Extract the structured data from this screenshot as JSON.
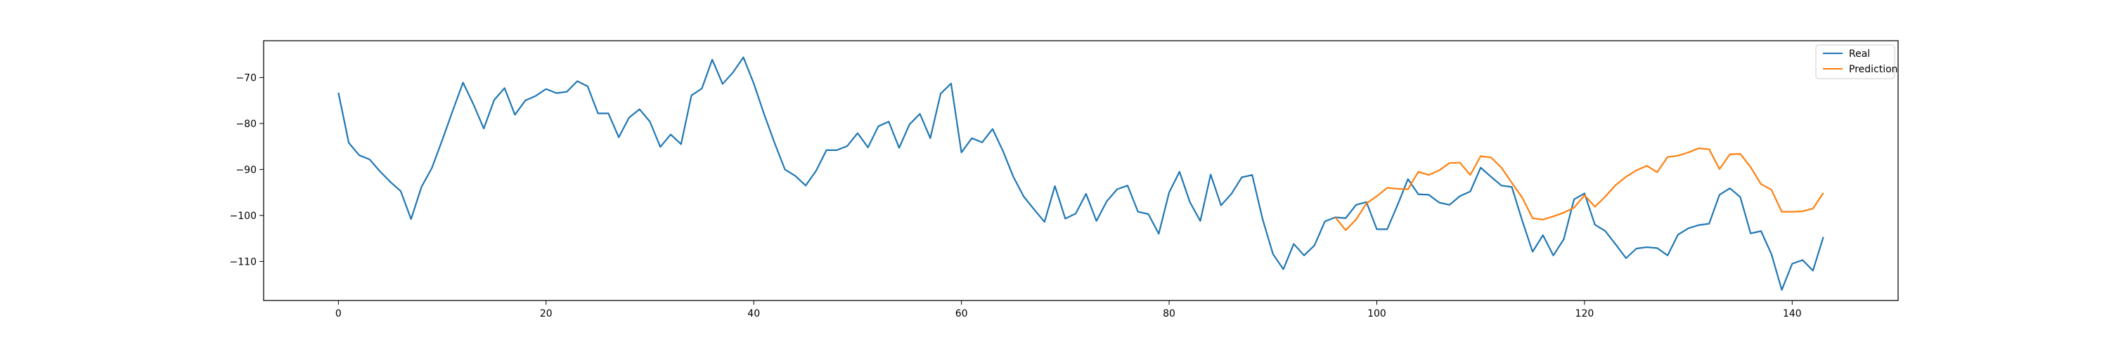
{
  "chart_data": {
    "type": "line",
    "title": "",
    "xlabel": "",
    "ylabel": "",
    "xlim": [
      -7.2,
      150.2
    ],
    "ylim": [
      -118.5,
      -62.0
    ],
    "xticks": [
      0,
      20,
      40,
      60,
      80,
      100,
      120,
      140
    ],
    "yticks": [
      -70,
      -80,
      -90,
      -100,
      -110
    ],
    "xtick_labels": [
      "0",
      "20",
      "40",
      "60",
      "80",
      "100",
      "120",
      "140"
    ],
    "ytick_labels": [
      "−70",
      "−80",
      "−90",
      "−100",
      "−110"
    ],
    "grid": false,
    "legend": {
      "position": "top-right",
      "entries": [
        "Real",
        "Prediction"
      ]
    },
    "series": [
      {
        "name": "Real",
        "color": "#1f77b4",
        "x": [
          0,
          1,
          2,
          3,
          4,
          5,
          6,
          7,
          8,
          9,
          10,
          11,
          12,
          13,
          14,
          15,
          16,
          17,
          18,
          19,
          20,
          21,
          22,
          23,
          24,
          25,
          26,
          27,
          28,
          29,
          30,
          31,
          32,
          33,
          34,
          35,
          36,
          37,
          38,
          39,
          40,
          41,
          42,
          43,
          44,
          45,
          46,
          47,
          48,
          49,
          50,
          51,
          52,
          53,
          54,
          55,
          56,
          57,
          58,
          59,
          60,
          61,
          62,
          63,
          64,
          65,
          66,
          67,
          68,
          69,
          70,
          71,
          72,
          73,
          74,
          75,
          76,
          77,
          78,
          79,
          80,
          81,
          82,
          83,
          84,
          85,
          86,
          87,
          88,
          89,
          90,
          91,
          92,
          93,
          94,
          95,
          96,
          97,
          98,
          99,
          100,
          101,
          102,
          103,
          104,
          105,
          106,
          107,
          108,
          109,
          110,
          111,
          112,
          113,
          114,
          115,
          116,
          117,
          118,
          119,
          120,
          121,
          122,
          123,
          124,
          125,
          126,
          127,
          128,
          129,
          130,
          131,
          132,
          133,
          134,
          135,
          136,
          137,
          138,
          139,
          140,
          141,
          142,
          143
        ],
        "values": [
          -73.3,
          -84.2,
          -86.9,
          -87.8,
          -90.4,
          -92.7,
          -94.7,
          -100.8,
          -93.8,
          -89.7,
          -83.6,
          -77.3,
          -71.1,
          -75.8,
          -81.1,
          -74.9,
          -72.3,
          -78.1,
          -75.0,
          -74.0,
          -72.5,
          -73.4,
          -73.1,
          -70.8,
          -71.9,
          -77.8,
          -77.8,
          -83.0,
          -78.7,
          -76.9,
          -79.6,
          -85.1,
          -82.4,
          -84.5,
          -73.9,
          -72.4,
          -66.1,
          -71.4,
          -68.9,
          -65.6,
          -71.3,
          -78.0,
          -84.2,
          -90.0,
          -91.4,
          -93.5,
          -90.3,
          -85.8,
          -85.8,
          -84.9,
          -82.1,
          -85.2,
          -80.6,
          -79.6,
          -85.3,
          -80.2,
          -77.9,
          -83.2,
          -73.5,
          -71.3,
          -86.3,
          -83.2,
          -84.1,
          -81.2,
          -86.0,
          -91.6,
          -95.9,
          -98.7,
          -101.4,
          -93.6,
          -100.7,
          -99.6,
          -95.3,
          -101.2,
          -96.9,
          -94.3,
          -93.5,
          -99.2,
          -99.7,
          -104.0,
          -95.0,
          -90.5,
          -97.1,
          -101.2,
          -91.1,
          -97.8,
          -95.3,
          -91.7,
          -91.2,
          -100.8,
          -108.4,
          -111.7,
          -106.2,
          -108.7,
          -106.5,
          -101.3,
          -100.4,
          -100.6,
          -97.7,
          -97.1,
          -103.0,
          -103.0,
          -97.7,
          -92.1,
          -95.4,
          -95.5,
          -97.2,
          -97.7,
          -95.8,
          -94.8,
          -89.6,
          -91.6,
          -93.5,
          -93.8,
          -101.1,
          -107.9,
          -104.3,
          -108.7,
          -105.2,
          -96.5,
          -95.2,
          -102.0,
          -103.4,
          -106.3,
          -109.3,
          -107.2,
          -106.9,
          -107.1,
          -108.7,
          -104.2,
          -102.8,
          -102.1,
          -101.8,
          -95.5,
          -94.1,
          -96.0,
          -103.9,
          -103.4,
          -108.4,
          -116.2,
          -110.5,
          -109.7,
          -112.0,
          -104.7
        ]
      },
      {
        "name": "Prediction",
        "color": "#ff7f0e",
        "x": [
          96,
          97,
          98,
          99,
          100,
          101,
          102,
          103,
          104,
          105,
          106,
          107,
          108,
          109,
          110,
          111,
          112,
          113,
          114,
          115,
          116,
          117,
          118,
          119,
          120,
          121,
          122,
          123,
          124,
          125,
          126,
          127,
          128,
          129,
          130,
          131,
          132,
          133,
          134,
          135,
          136,
          137,
          138,
          139,
          140,
          141,
          142,
          143
        ],
        "values": [
          -100.4,
          -103.2,
          -100.9,
          -97.4,
          -95.8,
          -94.0,
          -94.2,
          -94.3,
          -90.5,
          -91.2,
          -90.2,
          -88.6,
          -88.5,
          -91.2,
          -87.1,
          -87.4,
          -89.6,
          -92.9,
          -96.1,
          -100.6,
          -100.9,
          -100.2,
          -99.4,
          -98.3,
          -95.6,
          -98.1,
          -95.9,
          -93.4,
          -91.6,
          -90.2,
          -89.2,
          -90.6,
          -87.3,
          -87.0,
          -86.3,
          -85.4,
          -85.6,
          -89.9,
          -86.7,
          -86.6,
          -89.5,
          -93.2,
          -94.4,
          -99.2,
          -99.2,
          -99.1,
          -98.5,
          -95.1
        ]
      }
    ]
  }
}
